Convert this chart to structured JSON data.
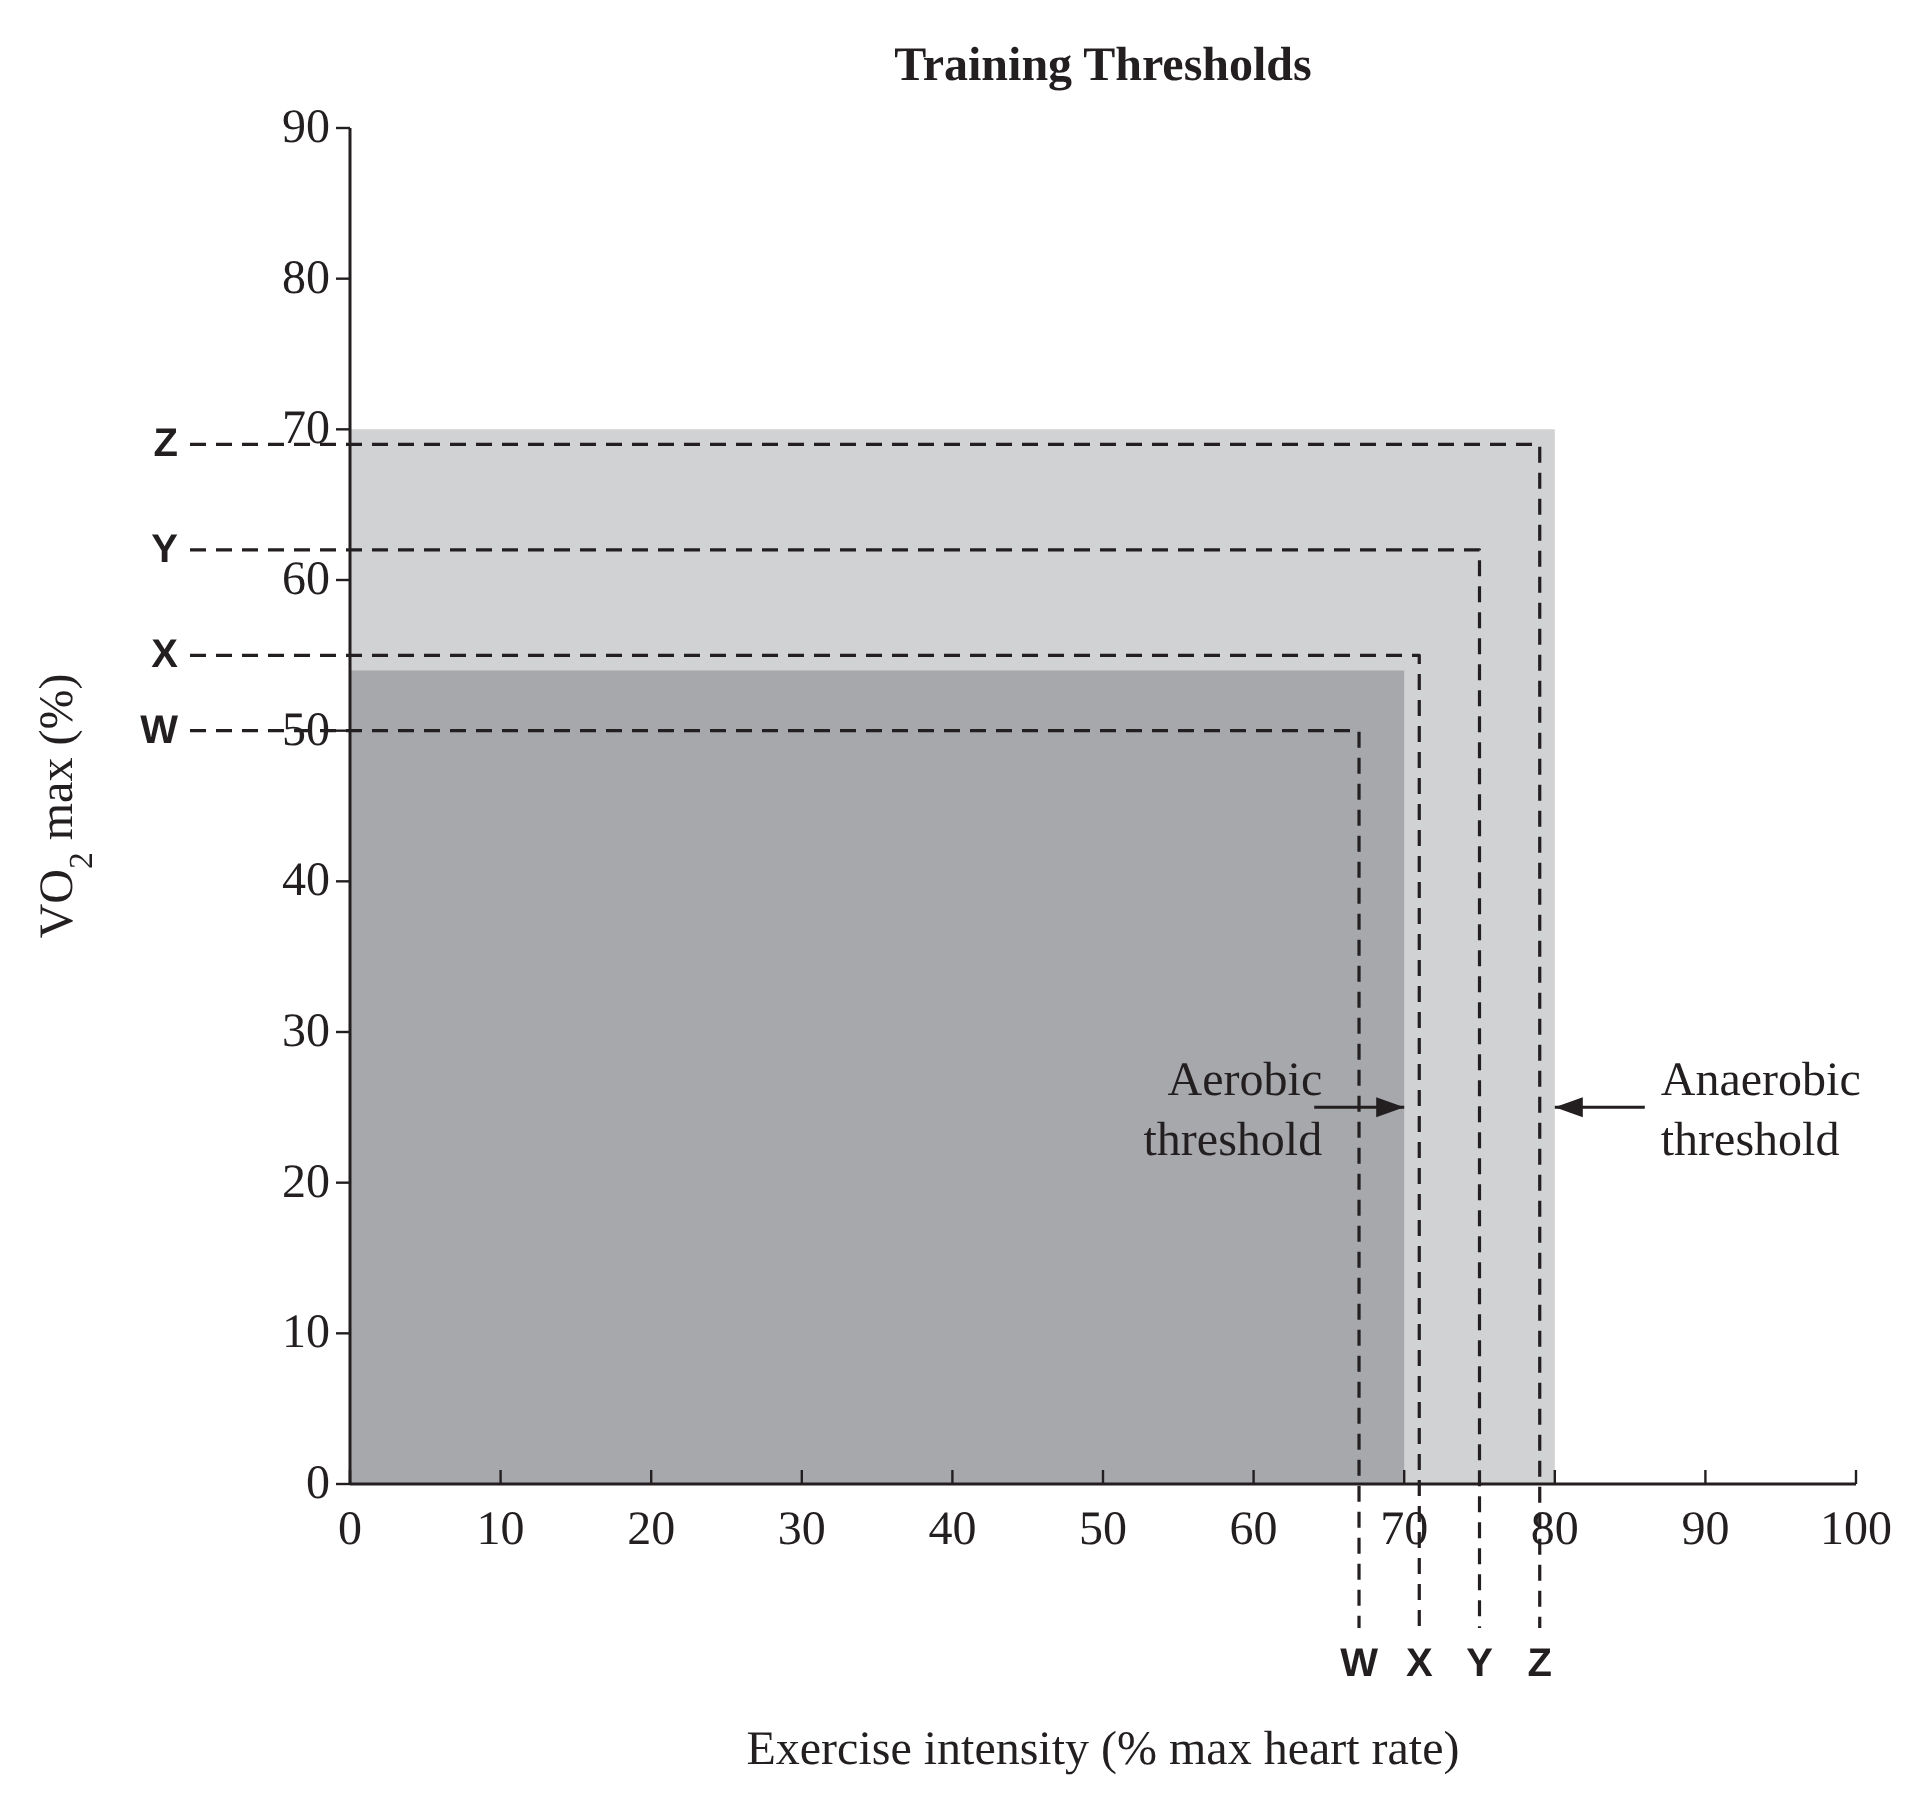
{
  "chart_data": {
    "type": "area",
    "title": "Training Thresholds",
    "xlabel": "Exercise intensity (% max heart rate)",
    "ylabel": "VO$_{2}$ max (%)",
    "xlim": [
      0,
      100
    ],
    "xticks": [
      0,
      10,
      20,
      30,
      40,
      50,
      60,
      70,
      80,
      90,
      100
    ],
    "ylim": [
      0,
      90
    ],
    "yticks": [
      0,
      10,
      20,
      30,
      40,
      50,
      60,
      70,
      80,
      90
    ],
    "series": [
      {
        "color": "#d1d2d4",
        "x": [
          0,
          80
        ],
        "values": [
          70,
          70
        ]
      },
      {
        "color": "#a7a8ac",
        "x": [
          0,
          70
        ],
        "values": [
          54,
          54
        ]
      },
      {
        "type": "line",
        "name": "W",
        "color": "#231f20",
        "line_style": "dashed",
        "x": [
          0,
          67,
          67
        ],
        "values": [
          50,
          50,
          0
        ]
      },
      {
        "type": "line",
        "name": "X",
        "color": "#231f20",
        "line_style": "dashed",
        "x": [
          0,
          71,
          71
        ],
        "values": [
          55,
          55,
          0
        ]
      },
      {
        "type": "line",
        "name": "Y",
        "color": "#231f20",
        "line_style": "dashed",
        "x": [
          0,
          75,
          75
        ],
        "values": [
          62,
          62,
          0
        ]
      },
      {
        "type": "line",
        "name": "Z",
        "color": "#231f20",
        "line_style": "dashed",
        "x": [
          0,
          79,
          79
        ],
        "values": [
          69,
          69,
          0
        ]
      }
    ],
    "annotations": [
      {
        "text": "Aerobic threshold",
        "x": 70,
        "y": 25
      },
      {
        "text": "Anaerobic threshold",
        "x": 80,
        "y": 25
      }
    ]
  }
}
